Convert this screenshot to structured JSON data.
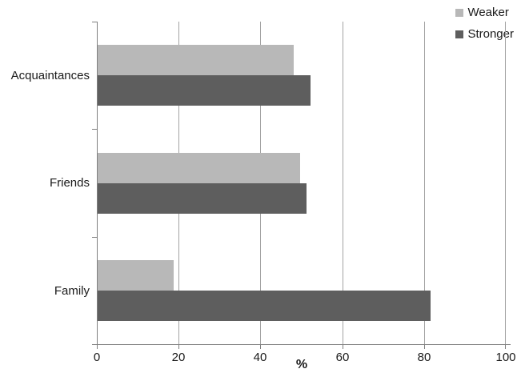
{
  "chart_data": {
    "type": "bar",
    "orientation": "horizontal",
    "title": "",
    "categories": [
      "Acquaintances",
      "Friends",
      "Family"
    ],
    "series": [
      {
        "name": "Weaker",
        "color": "#b8b8b8",
        "values": [
          48,
          49.5,
          18.5
        ]
      },
      {
        "name": "Stronger",
        "color": "#5e5e5e",
        "values": [
          52,
          51,
          81.5
        ]
      }
    ],
    "xlabel": "%",
    "ylabel": "",
    "xlim": [
      0,
      100
    ],
    "xticks": [
      0,
      20,
      40,
      60,
      80,
      100
    ],
    "grid": "vertical",
    "legend_position": "top-right",
    "colors": {
      "gridline": "#a3a3a3",
      "axis": "#808080",
      "text": "#1a1a1a",
      "background": "#ffffff"
    }
  }
}
